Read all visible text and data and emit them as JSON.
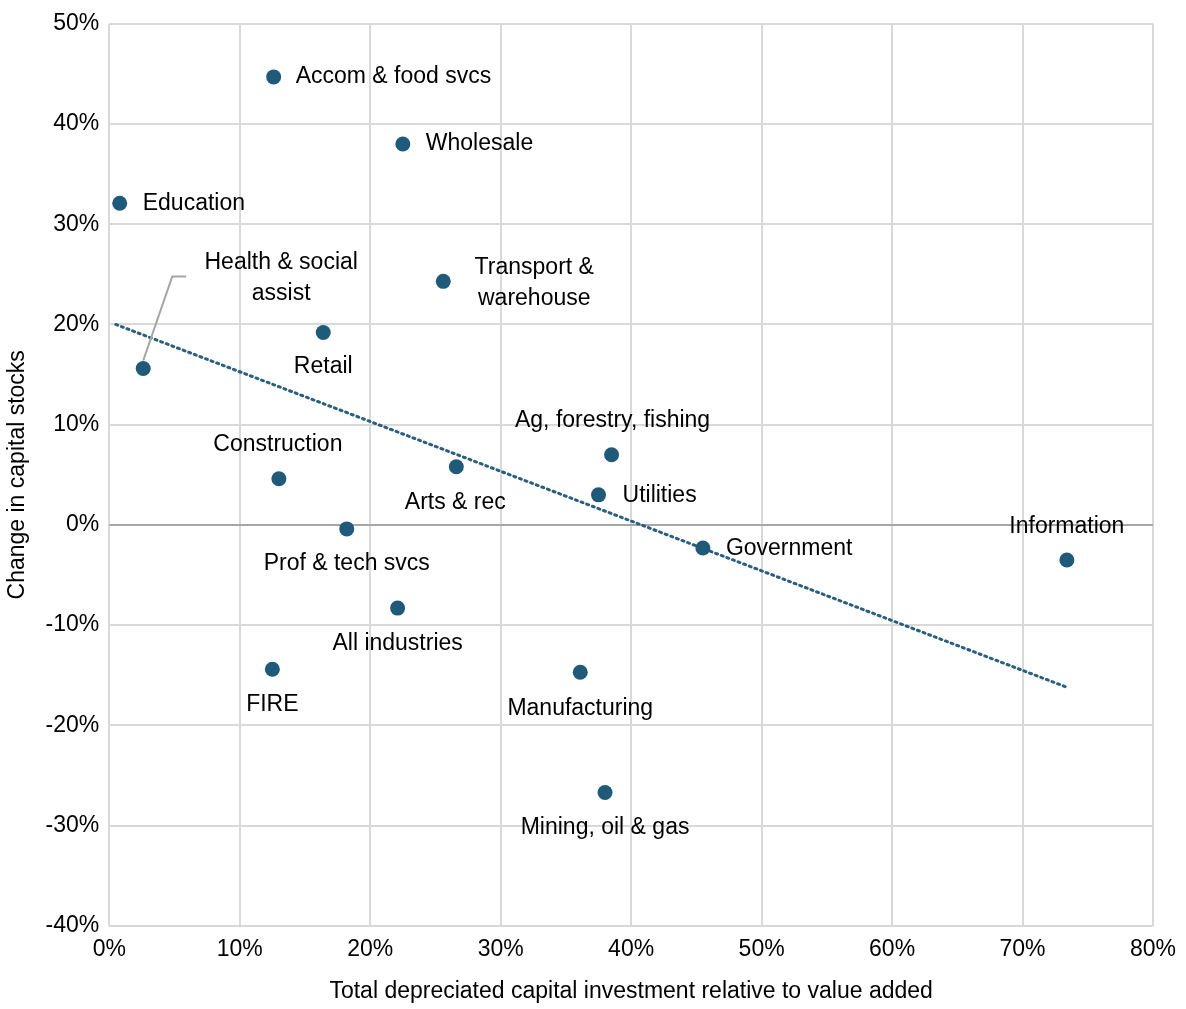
{
  "chart_data": {
    "type": "scatter",
    "xlabel": "Total depreciated capital investment relative to value added",
    "ylabel": "Change in capital stocks",
    "xlim": [
      0,
      80
    ],
    "xticks": [
      {
        "value": 0,
        "label": "0%"
      },
      {
        "value": 10,
        "label": "10%"
      },
      {
        "value": 20,
        "label": "20%"
      },
      {
        "value": 30,
        "label": "30%"
      },
      {
        "value": 40,
        "label": "40%"
      },
      {
        "value": 50,
        "label": "50%"
      },
      {
        "value": 60,
        "label": "60%"
      },
      {
        "value": 70,
        "label": "70%"
      },
      {
        "value": 80,
        "label": "80%"
      }
    ],
    "ylim": [
      -40,
      50
    ],
    "yticks": [
      {
        "value": -40,
        "label": "-40%"
      },
      {
        "value": -30,
        "label": "-30%"
      },
      {
        "value": -20,
        "label": "-20%"
      },
      {
        "value": -10,
        "label": "-10%"
      },
      {
        "value": 0,
        "label": "0%"
      },
      {
        "value": 10,
        "label": "10%"
      },
      {
        "value": 20,
        "label": "20%"
      },
      {
        "value": 30,
        "label": "30%"
      },
      {
        "value": 40,
        "label": "40%"
      },
      {
        "value": 50,
        "label": "50%"
      }
    ],
    "grid": true,
    "legend": false,
    "marker": "circle",
    "series": [
      {
        "color": "#1f5a7a",
        "x": [
          12.6,
          22.5,
          0.8,
          2.6,
          25.6,
          16.4,
          13.0,
          26.6,
          38.5,
          37.5,
          45.5,
          73.4,
          18.2,
          22.1,
          12.5,
          36.1,
          38.0
        ],
        "values": [
          44.7,
          38.0,
          32.1,
          15.6,
          24.3,
          19.2,
          4.6,
          5.8,
          7.0,
          3.0,
          -2.3,
          -3.5,
          -0.4,
          -8.3,
          -14.4,
          -14.7,
          -26.7
        ]
      },
      {
        "type": "line",
        "color": "#2a5f7f",
        "line_style": "dotted",
        "marker": "none",
        "x": [
          0.5,
          73.4
        ],
        "values": [
          20,
          -16.2
        ]
      }
    ],
    "annotations": [
      {
        "text": "Accom & food svcs",
        "x": 12.6,
        "y": 44.7
      },
      {
        "text": "Wholesale",
        "x": 22.5,
        "y": 38.0
      },
      {
        "text": "Education",
        "x": 0.8,
        "y": 32.1
      },
      {
        "text": "Health & social assist",
        "x": 2.6,
        "y": 15.6
      },
      {
        "text": "Transport & warehouse",
        "x": 25.6,
        "y": 24.3
      },
      {
        "text": "Retail",
        "x": 16.4,
        "y": 19.2
      },
      {
        "text": "Construction",
        "x": 13.0,
        "y": 4.6
      },
      {
        "text": "Arts & rec",
        "x": 26.6,
        "y": 5.8
      },
      {
        "text": "Ag, forestry, fishing",
        "x": 38.5,
        "y": 7.0
      },
      {
        "text": "Utilities",
        "x": 37.5,
        "y": 3.0
      },
      {
        "text": "Government",
        "x": 45.5,
        "y": -2.3
      },
      {
        "text": "Information",
        "x": 73.4,
        "y": -3.5
      },
      {
        "text": "Prof & tech svcs",
        "x": 18.2,
        "y": -0.4
      },
      {
        "text": "All industries",
        "x": 22.1,
        "y": -8.3
      },
      {
        "text": "FIRE",
        "x": 12.5,
        "y": -14.4
      },
      {
        "text": "Manufacturing",
        "x": 36.1,
        "y": -14.7
      },
      {
        "text": "Mining, oil & gas",
        "x": 38.0,
        "y": -26.7
      }
    ]
  }
}
